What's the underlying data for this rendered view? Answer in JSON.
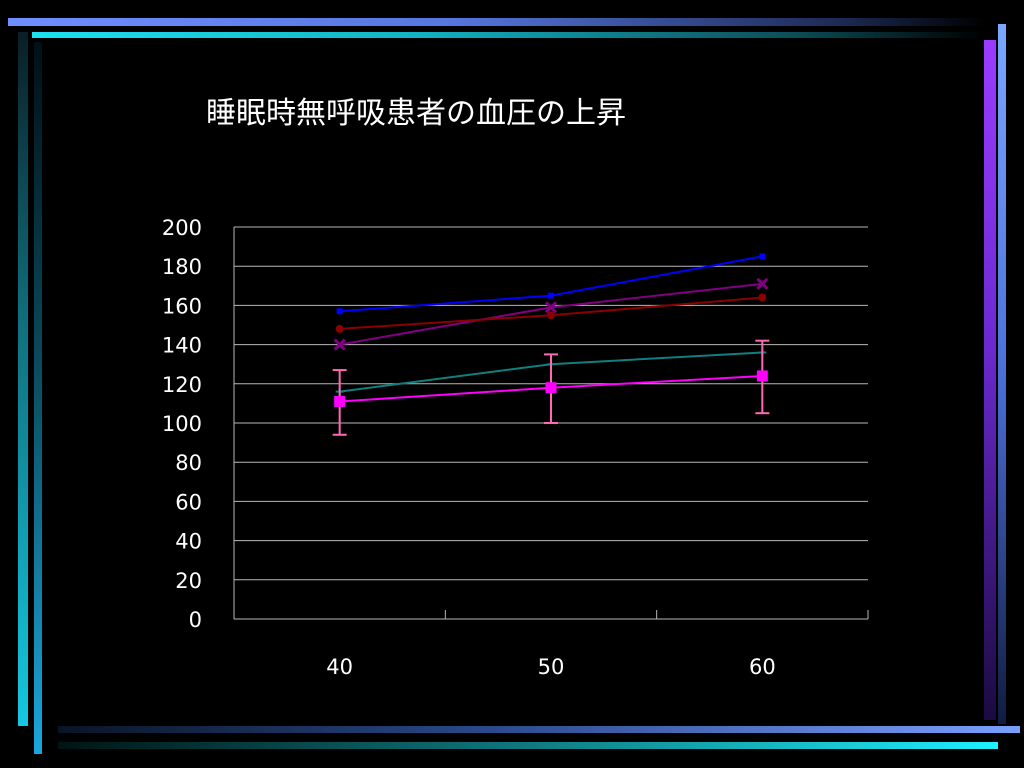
{
  "chart_data": {
    "type": "line",
    "title": "睡眠時無呼吸患者の血圧の上昇",
    "xlabel": "",
    "ylabel": "",
    "categories": [
      "40",
      "50",
      "60"
    ],
    "ylim": [
      0,
      200
    ],
    "yticks": [
      "0",
      "20",
      "40",
      "60",
      "80",
      "100",
      "120",
      "140",
      "160",
      "180",
      "200"
    ],
    "grid": true,
    "series": [
      {
        "color": "#0000ff",
        "marker": "square-small",
        "values": [
          157,
          165,
          185
        ]
      },
      {
        "color": "#800080",
        "marker": "x",
        "values": [
          140,
          159,
          171
        ]
      },
      {
        "color": "#8b0000",
        "marker": "circle",
        "values": [
          148,
          155,
          164
        ]
      },
      {
        "color": "#0f7f7f",
        "marker": "plus",
        "values": [
          116,
          130,
          136
        ]
      },
      {
        "color": "#ff00ff",
        "marker": "square",
        "values": [
          111,
          118,
          124
        ],
        "error": [
          [
            94,
            127
          ],
          [
            100,
            135
          ],
          [
            105,
            142
          ]
        ],
        "error_color": "#ff69b4"
      }
    ]
  }
}
